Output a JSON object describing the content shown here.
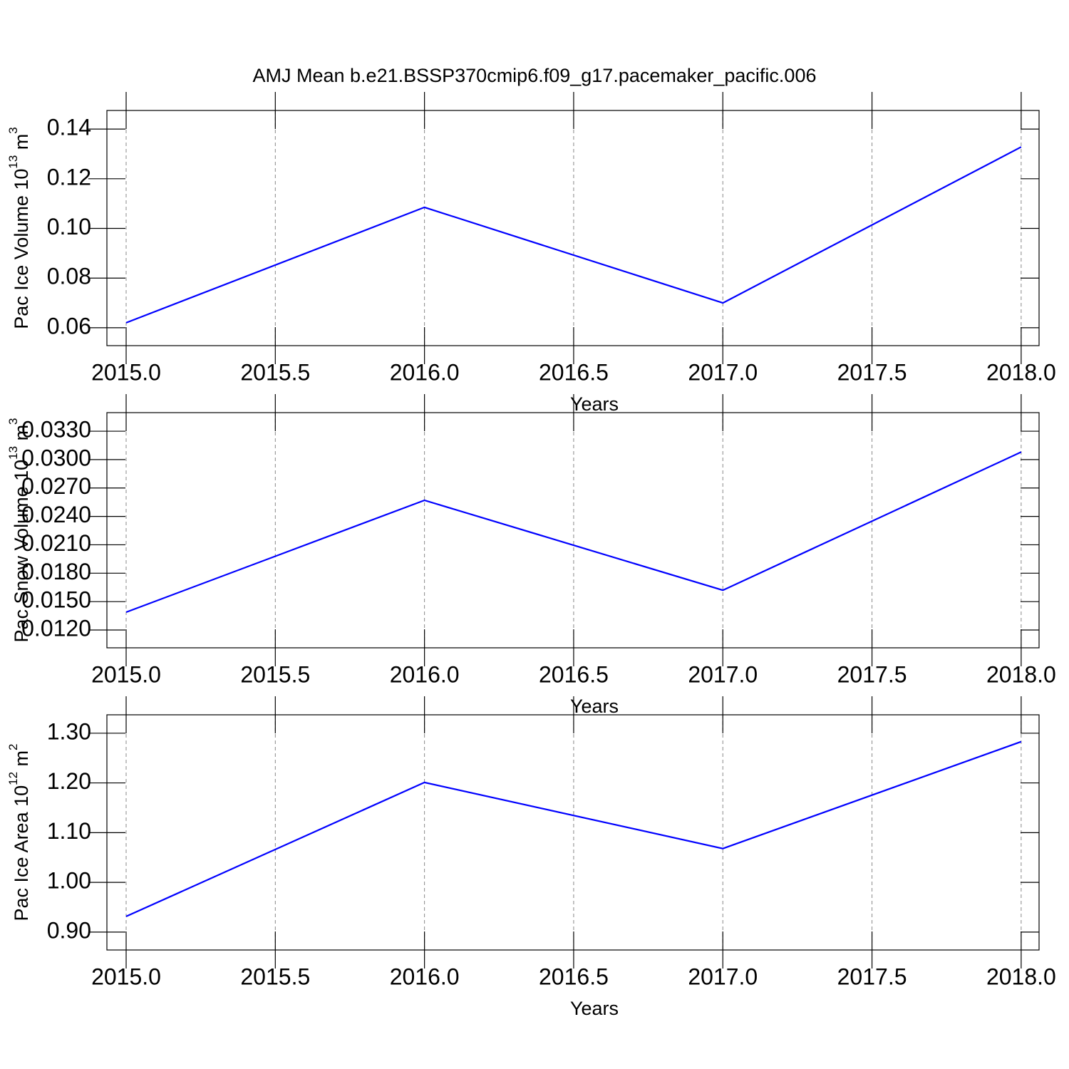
{
  "title": "AMJ Mean b.e21.BSSP370cmip6.f09_g17.pacemaker_pacific.006",
  "chart_data": [
    {
      "type": "line",
      "ylabel": [
        "Pac Ice Volume 10",
        "13",
        " m",
        "3"
      ],
      "xlabel": "Years",
      "x": [
        2015,
        2016,
        2017,
        2018
      ],
      "series": [
        {
          "color": "#0000ff",
          "values": [
            0.062,
            0.1085,
            0.07,
            0.1328
          ]
        }
      ],
      "xlim": [
        2014.9355,
        2018.06
      ],
      "xticks": [
        {
          "value": 2015,
          "label": "2015.0"
        },
        {
          "value": 2015.5,
          "label": "2015.5"
        },
        {
          "value": 2016,
          "label": "2016.0"
        },
        {
          "value": 2016.5,
          "label": "2016.5"
        },
        {
          "value": 2017,
          "label": "2017.0"
        },
        {
          "value": 2017.5,
          "label": "2017.5"
        },
        {
          "value": 2018,
          "label": "2018.0"
        }
      ],
      "ylim": [
        0.0528,
        0.1475
      ],
      "yticks": [
        {
          "value": 0.06,
          "label": "0.06"
        },
        {
          "value": 0.08,
          "label": "0.08"
        },
        {
          "value": 0.1,
          "label": "0.10"
        },
        {
          "value": 0.12,
          "label": "0.12"
        },
        0.14
      ],
      "grid": "x"
    },
    {
      "type": "line",
      "ylabel": [
        "Pac Snow Volume 10",
        "13",
        " m",
        "3"
      ],
      "xlabel": "Years",
      "x": [
        2015,
        2016,
        2017,
        2018
      ],
      "series": [
        {
          "color": "#0000ff",
          "values": [
            0.01388,
            0.0257,
            0.0162,
            0.0308
          ]
        }
      ],
      "xlim": [
        2014.9355,
        2018.06
      ],
      "xticks": [
        {
          "value": 2015,
          "label": "2015.0"
        },
        {
          "value": 2015.5,
          "label": "2015.5"
        },
        {
          "value": 2016,
          "label": "2016.0"
        },
        {
          "value": 2016.5,
          "label": "2016.5"
        },
        {
          "value": 2017,
          "label": "2017.0"
        },
        {
          "value": 2017.5,
          "label": "2017.5"
        },
        {
          "value": 2018,
          "label": "2018.0"
        }
      ],
      "ylim": [
        0.01012,
        0.03496
      ],
      "yticks": [
        {
          "value": 0.012,
          "label": "0.0120"
        },
        {
          "value": 0.015,
          "label": "0.0150"
        },
        {
          "value": 0.018,
          "label": "0.0180"
        },
        {
          "value": 0.021,
          "label": "0.0210"
        },
        {
          "value": 0.024,
          "label": "0.0240"
        },
        {
          "value": 0.027,
          "label": "0.0270"
        },
        {
          "value": 0.03,
          "label": "0.0300"
        },
        {
          "value": 0.033,
          "label": "0.0330"
        }
      ],
      "grid": "x"
    },
    {
      "type": "line",
      "ylabel": [
        "Pac Ice Area 10",
        "12",
        " m",
        "2"
      ],
      "xlabel": "Years",
      "x": [
        2015,
        2016,
        2017,
        2018
      ],
      "series": [
        {
          "color": "#0000ff",
          "values": [
            0.9315,
            1.201,
            1.068,
            1.283
          ]
        }
      ],
      "xlim": [
        2014.9355,
        2018.06
      ],
      "xticks": [
        {
          "value": 2015,
          "label": "2015.0"
        },
        {
          "value": 2015.5,
          "label": "2015.5"
        },
        {
          "value": 2016,
          "label": "2016.0"
        },
        {
          "value": 2016.5,
          "label": "2016.5"
        },
        {
          "value": 2017,
          "label": "2017.0"
        },
        {
          "value": 2017.5,
          "label": "2017.5"
        },
        {
          "value": 2018,
          "label": "2018.0"
        }
      ],
      "ylim": [
        0.864,
        1.337
      ],
      "yticks": [
        {
          "value": 0.9,
          "label": "0.90"
        },
        {
          "value": 1.0,
          "label": "1.00"
        },
        {
          "value": 1.1,
          "label": "1.10"
        },
        {
          "value": 1.2,
          "label": "1.20"
        },
        {
          "value": 1.3,
          "label": "1.30"
        }
      ],
      "grid": "x"
    }
  ]
}
